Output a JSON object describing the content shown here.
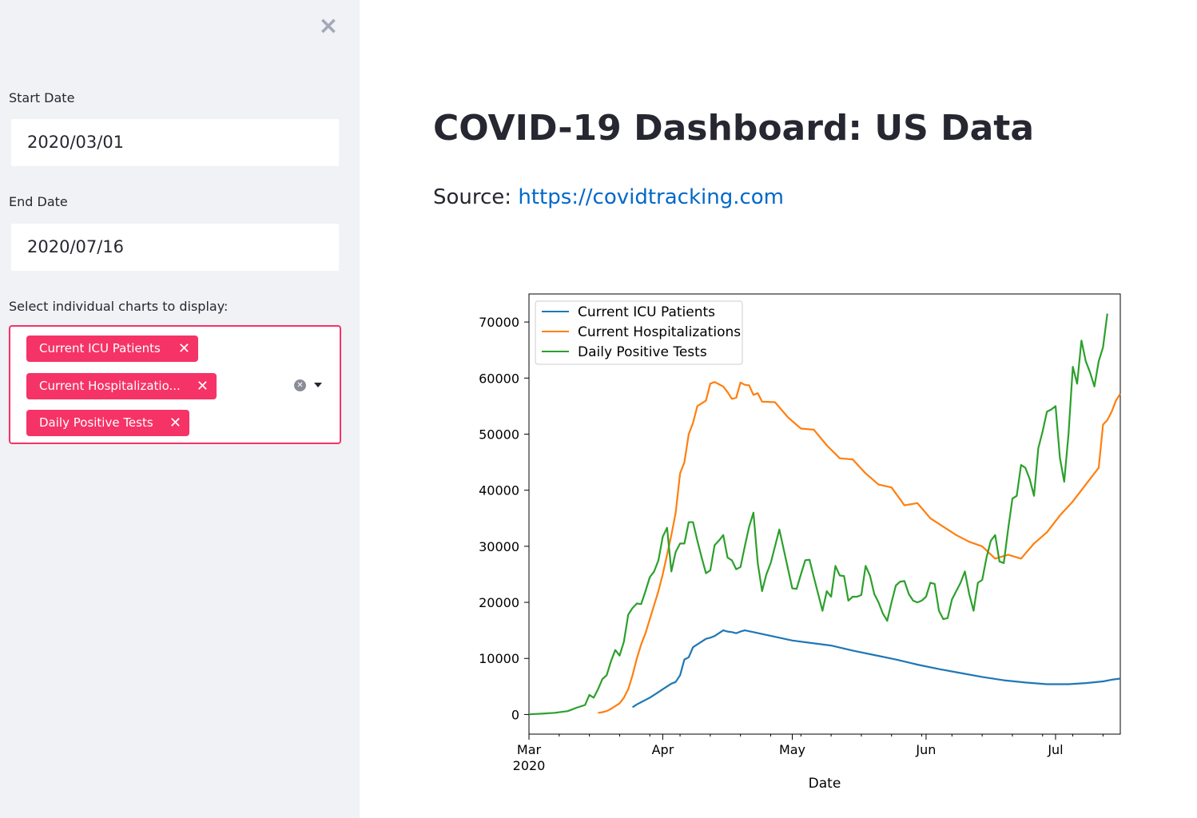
{
  "sidebar": {
    "close_icon": "×",
    "start_date_label": "Start Date",
    "start_date_value": "2020/03/01",
    "end_date_label": "End Date",
    "end_date_value": "2020/07/16",
    "charts_label": "Select individual charts to display:",
    "selected_charts": [
      "Current ICU Patients",
      "Current Hospitalizatio...",
      "Daily Positive Tests"
    ],
    "accent_color": "#f63366"
  },
  "main": {
    "title": "COVID-19 Dashboard: US Data",
    "source_prefix": "Source:",
    "source_link": "https://covidtracking.com",
    "link_color": "#0068c9"
  },
  "chart_data": {
    "type": "line",
    "xlabel": "Date",
    "x_ticks": [
      "Mar",
      "Apr",
      "May",
      "Jun",
      "Jul"
    ],
    "x_year_label": "2020",
    "ylim": [
      -3500,
      75000
    ],
    "y_ticks": [
      "0",
      "10000",
      "20000",
      "30000",
      "40000",
      "50000",
      "60000",
      "70000"
    ],
    "legend_position": "upper-left",
    "grid": false,
    "series": [
      {
        "name": "Current ICU Patients",
        "color": "#1f77b4",
        "points": [
          [
            "2020-03-25",
            1300
          ],
          [
            "2020-03-26",
            1800
          ],
          [
            "2020-03-27",
            2200
          ],
          [
            "2020-03-28",
            2600
          ],
          [
            "2020-03-29",
            3000
          ],
          [
            "2020-03-30",
            3500
          ],
          [
            "2020-03-31",
            4000
          ],
          [
            "2020-04-01",
            4500
          ],
          [
            "2020-04-02",
            5000
          ],
          [
            "2020-04-03",
            5500
          ],
          [
            "2020-04-04",
            5800
          ],
          [
            "2020-04-05",
            7000
          ],
          [
            "2020-04-06",
            9800
          ],
          [
            "2020-04-07",
            10200
          ],
          [
            "2020-04-08",
            12000
          ],
          [
            "2020-04-09",
            12500
          ],
          [
            "2020-04-10",
            13000
          ],
          [
            "2020-04-11",
            13500
          ],
          [
            "2020-04-12",
            13700
          ],
          [
            "2020-04-13",
            14000
          ],
          [
            "2020-04-14",
            14500
          ],
          [
            "2020-04-15",
            15000
          ],
          [
            "2020-04-16",
            14800
          ],
          [
            "2020-04-17",
            14700
          ],
          [
            "2020-04-18",
            14500
          ],
          [
            "2020-04-19",
            14800
          ],
          [
            "2020-04-20",
            15000
          ],
          [
            "2020-04-22",
            14700
          ],
          [
            "2020-04-25",
            14200
          ],
          [
            "2020-04-28",
            13700
          ],
          [
            "2020-05-01",
            13200
          ],
          [
            "2020-05-05",
            12800
          ],
          [
            "2020-05-10",
            12300
          ],
          [
            "2020-05-15",
            11400
          ],
          [
            "2020-05-20",
            10600
          ],
          [
            "2020-05-25",
            9800
          ],
          [
            "2020-05-30",
            8900
          ],
          [
            "2020-06-04",
            8100
          ],
          [
            "2020-06-09",
            7400
          ],
          [
            "2020-06-14",
            6700
          ],
          [
            "2020-06-19",
            6100
          ],
          [
            "2020-06-24",
            5700
          ],
          [
            "2020-06-29",
            5400
          ],
          [
            "2020-07-04",
            5400
          ],
          [
            "2020-07-08",
            5600
          ],
          [
            "2020-07-12",
            5900
          ],
          [
            "2020-07-14",
            6200
          ],
          [
            "2020-07-16",
            6400
          ]
        ]
      },
      {
        "name": "Current Hospitalizations",
        "color": "#ff7f0e",
        "points": [
          [
            "2020-03-17",
            300
          ],
          [
            "2020-03-18",
            400
          ],
          [
            "2020-03-19",
            600
          ],
          [
            "2020-03-20",
            1000
          ],
          [
            "2020-03-21",
            1500
          ],
          [
            "2020-03-22",
            2000
          ],
          [
            "2020-03-23",
            3000
          ],
          [
            "2020-03-24",
            4500
          ],
          [
            "2020-03-25",
            7000
          ],
          [
            "2020-03-26",
            10000
          ],
          [
            "2020-03-27",
            12500
          ],
          [
            "2020-03-28",
            14500
          ],
          [
            "2020-03-29",
            17000
          ],
          [
            "2020-03-30",
            19500
          ],
          [
            "2020-03-31",
            22000
          ],
          [
            "2020-04-01",
            25000
          ],
          [
            "2020-04-02",
            28500
          ],
          [
            "2020-04-03",
            32000
          ],
          [
            "2020-04-04",
            36000
          ],
          [
            "2020-04-05",
            43000
          ],
          [
            "2020-04-06",
            45000
          ],
          [
            "2020-04-07",
            50000
          ],
          [
            "2020-04-08",
            52000
          ],
          [
            "2020-04-09",
            55000
          ],
          [
            "2020-04-10",
            55500
          ],
          [
            "2020-04-11",
            56000
          ],
          [
            "2020-04-12",
            59000
          ],
          [
            "2020-04-13",
            59300
          ],
          [
            "2020-04-14",
            58900
          ],
          [
            "2020-04-15",
            58500
          ],
          [
            "2020-04-16",
            57500
          ],
          [
            "2020-04-17",
            56300
          ],
          [
            "2020-04-18",
            56500
          ],
          [
            "2020-04-19",
            59200
          ],
          [
            "2020-04-20",
            58800
          ],
          [
            "2020-04-21",
            58700
          ],
          [
            "2020-04-22",
            57000
          ],
          [
            "2020-04-23",
            57300
          ],
          [
            "2020-04-24",
            55800
          ],
          [
            "2020-04-27",
            55700
          ],
          [
            "2020-04-30",
            53000
          ],
          [
            "2020-05-03",
            51000
          ],
          [
            "2020-05-06",
            50800
          ],
          [
            "2020-05-09",
            48000
          ],
          [
            "2020-05-12",
            45700
          ],
          [
            "2020-05-15",
            45500
          ],
          [
            "2020-05-18",
            43000
          ],
          [
            "2020-05-21",
            41000
          ],
          [
            "2020-05-24",
            40500
          ],
          [
            "2020-05-27",
            37300
          ],
          [
            "2020-05-30",
            37700
          ],
          [
            "2020-06-02",
            35000
          ],
          [
            "2020-06-05",
            33500
          ],
          [
            "2020-06-08",
            32000
          ],
          [
            "2020-06-11",
            30800
          ],
          [
            "2020-06-14",
            30000
          ],
          [
            "2020-06-17",
            27800
          ],
          [
            "2020-06-20",
            28500
          ],
          [
            "2020-06-23",
            27800
          ],
          [
            "2020-06-26",
            30500
          ],
          [
            "2020-06-29",
            32500
          ],
          [
            "2020-07-02",
            35500
          ],
          [
            "2020-07-05",
            38000
          ],
          [
            "2020-07-08",
            41000
          ],
          [
            "2020-07-11",
            44000
          ],
          [
            "2020-07-12",
            51700
          ],
          [
            "2020-07-13",
            52500
          ],
          [
            "2020-07-14",
            54000
          ],
          [
            "2020-07-15",
            56000
          ],
          [
            "2020-07-16",
            57200
          ]
        ]
      },
      {
        "name": "Daily Positive Tests",
        "color": "#2ca02c",
        "points": [
          [
            "2020-03-01",
            30
          ],
          [
            "2020-03-04",
            150
          ],
          [
            "2020-03-07",
            300
          ],
          [
            "2020-03-10",
            600
          ],
          [
            "2020-03-12",
            1200
          ],
          [
            "2020-03-14",
            1700
          ],
          [
            "2020-03-15",
            3500
          ],
          [
            "2020-03-16",
            3000
          ],
          [
            "2020-03-17",
            4500
          ],
          [
            "2020-03-18",
            6300
          ],
          [
            "2020-03-19",
            7000
          ],
          [
            "2020-03-20",
            9500
          ],
          [
            "2020-03-21",
            11500
          ],
          [
            "2020-03-22",
            10500
          ],
          [
            "2020-03-23",
            13000
          ],
          [
            "2020-03-24",
            17800
          ],
          [
            "2020-03-25",
            19000
          ],
          [
            "2020-03-26",
            19800
          ],
          [
            "2020-03-27",
            19700
          ],
          [
            "2020-03-28",
            22000
          ],
          [
            "2020-03-29",
            24500
          ],
          [
            "2020-03-30",
            25500
          ],
          [
            "2020-03-31",
            27500
          ],
          [
            "2020-04-01",
            31700
          ],
          [
            "2020-04-02",
            33300
          ],
          [
            "2020-04-03",
            25500
          ],
          [
            "2020-04-04",
            29000
          ],
          [
            "2020-04-05",
            30500
          ],
          [
            "2020-04-06",
            30500
          ],
          [
            "2020-04-07",
            34300
          ],
          [
            "2020-04-08",
            34300
          ],
          [
            "2020-04-09",
            31000
          ],
          [
            "2020-04-10",
            28000
          ],
          [
            "2020-04-11",
            25200
          ],
          [
            "2020-04-12",
            25700
          ],
          [
            "2020-04-13",
            30200
          ],
          [
            "2020-04-14",
            31000
          ],
          [
            "2020-04-15",
            32000
          ],
          [
            "2020-04-16",
            28000
          ],
          [
            "2020-04-17",
            27500
          ],
          [
            "2020-04-18",
            25900
          ],
          [
            "2020-04-19",
            26300
          ],
          [
            "2020-04-20",
            30000
          ],
          [
            "2020-04-21",
            33500
          ],
          [
            "2020-04-22",
            36000
          ],
          [
            "2020-04-23",
            27000
          ],
          [
            "2020-04-24",
            22000
          ],
          [
            "2020-04-25",
            25000
          ],
          [
            "2020-04-26",
            27000
          ],
          [
            "2020-04-27",
            30000
          ],
          [
            "2020-04-28",
            33000
          ],
          [
            "2020-04-29",
            29500
          ],
          [
            "2020-04-30",
            26000
          ],
          [
            "2020-05-01",
            22500
          ],
          [
            "2020-05-02",
            22400
          ],
          [
            "2020-05-03",
            25000
          ],
          [
            "2020-05-04",
            27500
          ],
          [
            "2020-05-05",
            27600
          ],
          [
            "2020-05-06",
            24500
          ],
          [
            "2020-05-07",
            21500
          ],
          [
            "2020-05-08",
            18500
          ],
          [
            "2020-05-09",
            22000
          ],
          [
            "2020-05-10",
            21000
          ],
          [
            "2020-05-11",
            26500
          ],
          [
            "2020-05-12",
            24800
          ],
          [
            "2020-05-13",
            24700
          ],
          [
            "2020-05-14",
            20300
          ],
          [
            "2020-05-15",
            21000
          ],
          [
            "2020-05-16",
            21000
          ],
          [
            "2020-05-17",
            21300
          ],
          [
            "2020-05-18",
            26500
          ],
          [
            "2020-05-19",
            24800
          ],
          [
            "2020-05-20",
            21500
          ],
          [
            "2020-05-21",
            20000
          ],
          [
            "2020-05-22",
            18000
          ],
          [
            "2020-05-23",
            16700
          ],
          [
            "2020-05-24",
            20000
          ],
          [
            "2020-05-25",
            23000
          ],
          [
            "2020-05-26",
            23700
          ],
          [
            "2020-05-27",
            23800
          ],
          [
            "2020-05-28",
            21500
          ],
          [
            "2020-05-29",
            20300
          ],
          [
            "2020-05-30",
            20000
          ],
          [
            "2020-05-31",
            20300
          ],
          [
            "2020-06-01",
            21000
          ],
          [
            "2020-06-02",
            23500
          ],
          [
            "2020-06-03",
            23300
          ],
          [
            "2020-06-04",
            18500
          ],
          [
            "2020-06-05",
            17000
          ],
          [
            "2020-06-06",
            17200
          ],
          [
            "2020-06-07",
            20500
          ],
          [
            "2020-06-08",
            22000
          ],
          [
            "2020-06-09",
            23500
          ],
          [
            "2020-06-10",
            25500
          ],
          [
            "2020-06-11",
            21500
          ],
          [
            "2020-06-12",
            18500
          ],
          [
            "2020-06-13",
            23500
          ],
          [
            "2020-06-14",
            24000
          ],
          [
            "2020-06-15",
            28000
          ],
          [
            "2020-06-16",
            31000
          ],
          [
            "2020-06-17",
            32000
          ],
          [
            "2020-06-18",
            27300
          ],
          [
            "2020-06-19",
            27000
          ],
          [
            "2020-06-20",
            33000
          ],
          [
            "2020-06-21",
            38500
          ],
          [
            "2020-06-22",
            39000
          ],
          [
            "2020-06-23",
            44500
          ],
          [
            "2020-06-24",
            44000
          ],
          [
            "2020-06-25",
            42000
          ],
          [
            "2020-06-26",
            39000
          ],
          [
            "2020-06-27",
            47500
          ],
          [
            "2020-06-28",
            50500
          ],
          [
            "2020-06-29",
            54000
          ],
          [
            "2020-06-30",
            54400
          ],
          [
            "2020-07-01",
            55000
          ],
          [
            "2020-07-02",
            45800
          ],
          [
            "2020-07-03",
            41500
          ],
          [
            "2020-07-04",
            50000
          ],
          [
            "2020-07-05",
            62000
          ],
          [
            "2020-07-06",
            59000
          ],
          [
            "2020-07-07",
            66700
          ],
          [
            "2020-07-08",
            63000
          ],
          [
            "2020-07-09",
            61000
          ],
          [
            "2020-07-10",
            58500
          ],
          [
            "2020-07-11",
            63000
          ],
          [
            "2020-07-12",
            65500
          ],
          [
            "2020-07-13",
            71500
          ]
        ]
      }
    ]
  }
}
